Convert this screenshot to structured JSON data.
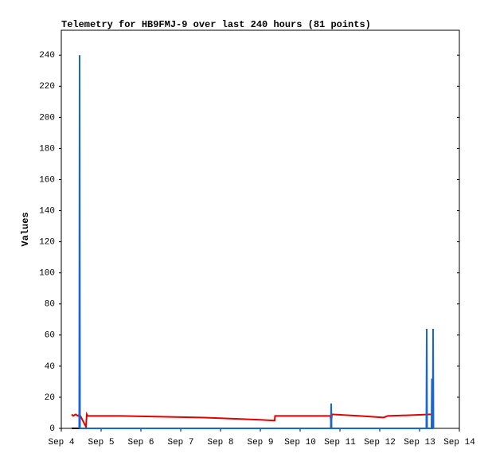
{
  "chart_data": {
    "type": "line",
    "title": "Telemetry for HB9FMJ-9 over last 240 hours (81 points)",
    "y_label": "Values",
    "xlim": [
      4,
      14
    ],
    "xticks": [
      {
        "value": 4,
        "label": "Sep 4"
      },
      {
        "value": 5,
        "label": "Sep 5"
      },
      {
        "value": 6,
        "label": "Sep 6"
      },
      {
        "value": 7,
        "label": "Sep 7"
      },
      {
        "value": 8,
        "label": "Sep 8"
      },
      {
        "value": 9,
        "label": "Sep 9"
      },
      {
        "value": 10,
        "label": "Sep 10"
      },
      {
        "value": 11,
        "label": "Sep 11"
      },
      {
        "value": 12,
        "label": "Sep 12"
      },
      {
        "value": 13,
        "label": "Sep 13"
      },
      {
        "value": 14,
        "label": "Sep 14"
      }
    ],
    "ylim": [
      0,
      256
    ],
    "yticks": [
      0,
      20,
      40,
      60,
      80,
      100,
      120,
      140,
      160,
      180,
      200,
      220,
      240
    ],
    "series": [
      {
        "color": "#000000",
        "width": 2,
        "x": [
          4.26,
          13.34
        ],
        "values": [
          0,
          0
        ]
      },
      {
        "color": "#e00000",
        "width": 2,
        "x": [
          4.26,
          4.3,
          4.36,
          4.42,
          4.46,
          4.62,
          4.64,
          4.66,
          4.7,
          5.5,
          6.5,
          7.5,
          8.5,
          9.0,
          9.36,
          9.37,
          10.76,
          10.78,
          10.8,
          11.5,
          12.1,
          12.2,
          12.8,
          13.3
        ],
        "values": [
          9,
          8,
          9,
          8,
          9,
          1,
          9,
          8,
          8,
          8,
          7.5,
          7,
          6,
          5.5,
          5,
          8,
          8,
          4,
          9,
          8,
          7,
          8,
          8.5,
          9
        ]
      },
      {
        "color": "#1a66cc",
        "width": 2,
        "x": [
          4.45,
          4.46,
          4.47,
          10.77,
          10.78,
          10.79,
          13.17,
          13.18,
          13.19,
          13.3,
          13.31,
          13.32,
          13.33,
          13.34,
          13.35
        ],
        "values": [
          0,
          240,
          0,
          0,
          16,
          0,
          0,
          64,
          0,
          0,
          32,
          0,
          0,
          64,
          0
        ]
      }
    ]
  }
}
